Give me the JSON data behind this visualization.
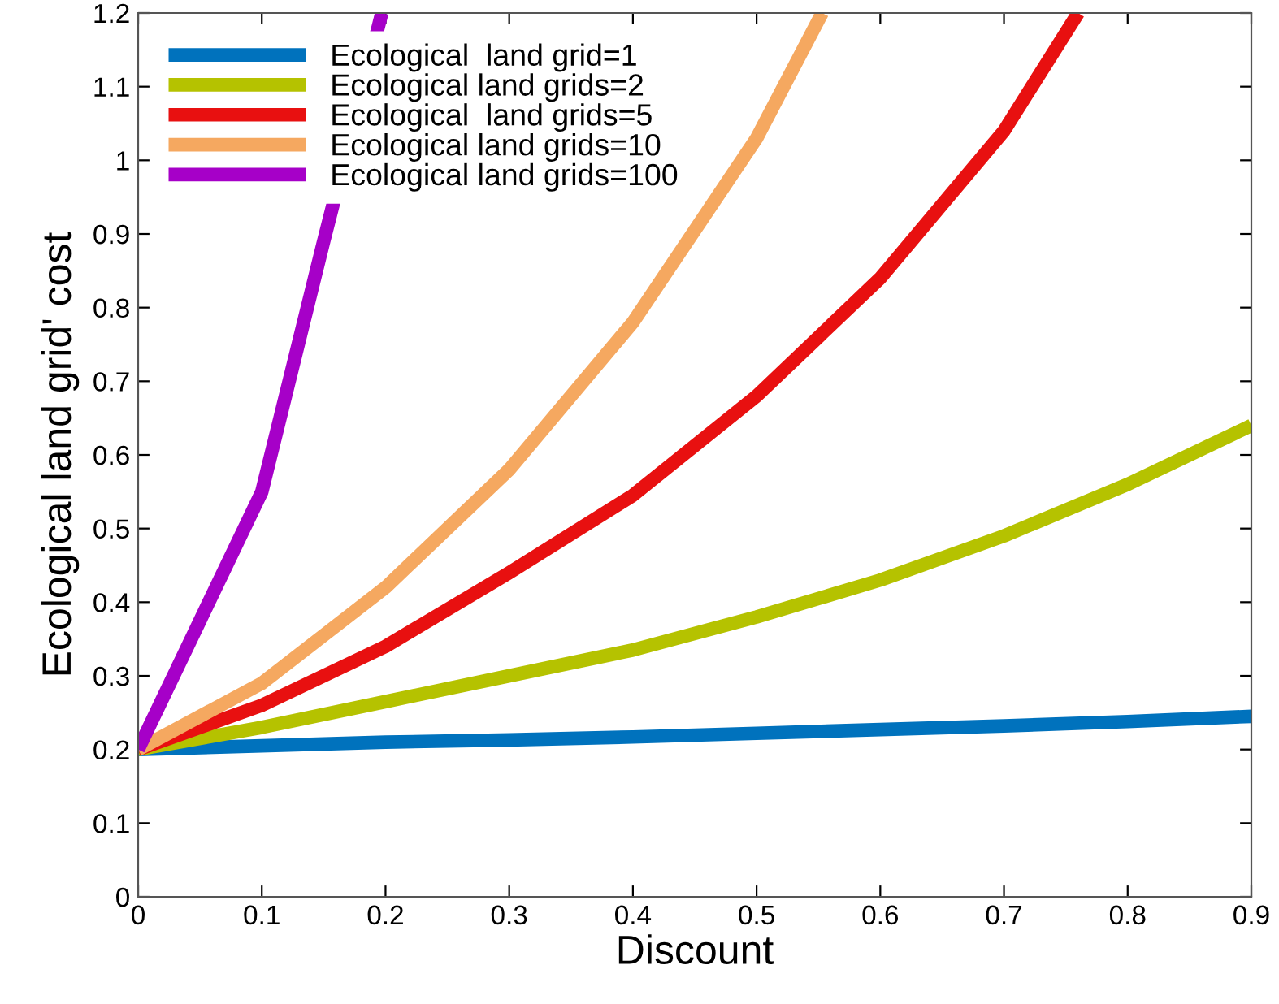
{
  "chart_data": {
    "type": "line",
    "xlabel": "Discount",
    "ylabel": "Ecological land grid' cost",
    "x": [
      0,
      0.1,
      0.2,
      0.3,
      0.4,
      0.5,
      0.6,
      0.7,
      0.8,
      0.9
    ],
    "series": [
      {
        "name": "Ecological  land grid=1",
        "color": "#0072bd",
        "values": [
          0.2,
          0.205,
          0.21,
          0.213,
          0.217,
          0.222,
          0.227,
          0.232,
          0.238,
          0.245
        ]
      },
      {
        "name": "Ecological land grids=2",
        "color": "#b5c200",
        "values": [
          0.2,
          0.23,
          0.265,
          0.3,
          0.335,
          0.38,
          0.43,
          0.49,
          0.56,
          0.64
        ]
      },
      {
        "name": "Ecological  land grids=5",
        "color": "#e81010",
        "x": [
          0,
          0.1,
          0.2,
          0.3,
          0.4,
          0.5,
          0.6,
          0.7,
          0.76
        ],
        "values": [
          0.2,
          0.26,
          0.34,
          0.44,
          0.545,
          0.68,
          0.84,
          1.04,
          1.2
        ]
      },
      {
        "name": "Ecological land grids=10",
        "color": "#f5a860",
        "x": [
          0,
          0.1,
          0.2,
          0.3,
          0.4,
          0.5,
          0.553
        ],
        "values": [
          0.2,
          0.29,
          0.42,
          0.58,
          0.78,
          1.03,
          1.2
        ]
      },
      {
        "name": "Ecological land grids=100",
        "color": "#a600c8",
        "x": [
          0,
          0.1,
          0.15,
          0.197
        ],
        "values": [
          0.2,
          0.55,
          0.89,
          1.2
        ]
      }
    ],
    "xlim": [
      0,
      0.9
    ],
    "ylim": [
      0,
      1.2
    ],
    "xticks": [
      0,
      0.1,
      0.2,
      0.3,
      0.4,
      0.5,
      0.6,
      0.7,
      0.8,
      0.9
    ],
    "yticks": [
      0,
      0.1,
      0.2,
      0.3,
      0.4,
      0.5,
      0.6,
      0.7,
      0.8,
      0.9,
      1,
      1.1,
      1.2
    ],
    "legend": "top left",
    "grid": false,
    "line_style": "solid",
    "marker": "none"
  }
}
